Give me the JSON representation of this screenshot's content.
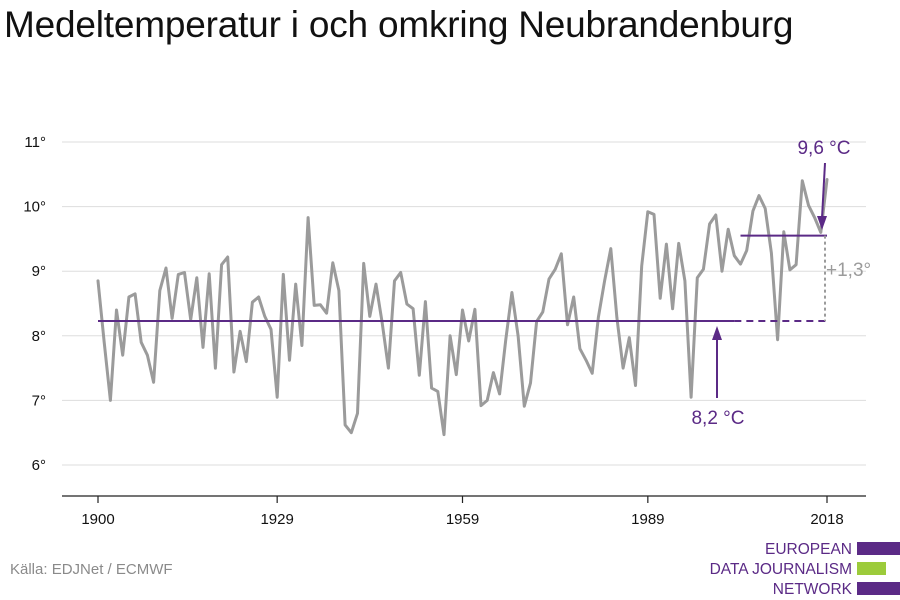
{
  "title": "Medeltemperatur i och omkring Neubrandenburg",
  "source": "Källa: EDJNet / ECMWF",
  "logo": {
    "lines": [
      "EUROPEAN",
      "DATA JOURNALISM",
      "NETWORK"
    ],
    "colors": [
      "#5b2a86",
      "#9ccb3b",
      "#5b2a86"
    ]
  },
  "colors": {
    "series": "#9b9b9b",
    "accent": "#5b2a86",
    "delta": "#9b9b9b",
    "axis": "#222222",
    "grid": "#dddddd",
    "tick_text": "#111111"
  },
  "chart_data": {
    "type": "line",
    "title": "Medeltemperatur i och omkring Neubrandenburg",
    "xlabel": "",
    "ylabel": "",
    "xlim": [
      1900,
      2018
    ],
    "ylim": [
      5.5,
      11.3
    ],
    "x_ticks": [
      1900,
      1929,
      1959,
      1989,
      2018
    ],
    "y_ticks": [
      6,
      7,
      8,
      9,
      10,
      11
    ],
    "y_tick_labels": [
      "6°",
      "7°",
      "8°",
      "9°",
      "10°",
      "11°"
    ],
    "grid": "horizontal",
    "series": [
      {
        "type": "line",
        "x": [
          1900,
          1901,
          1902,
          1903,
          1904,
          1905,
          1906,
          1907,
          1908,
          1909,
          1910,
          1911,
          1912,
          1913,
          1914,
          1915,
          1916,
          1917,
          1918,
          1919,
          1920,
          1921,
          1922,
          1923,
          1924,
          1925,
          1926,
          1927,
          1928,
          1929,
          1930,
          1931,
          1932,
          1933,
          1934,
          1935,
          1936,
          1937,
          1938,
          1939,
          1940,
          1941,
          1942,
          1943,
          1944,
          1945,
          1946,
          1947,
          1948,
          1949,
          1950,
          1951,
          1952,
          1953,
          1954,
          1955,
          1956,
          1957,
          1958,
          1959,
          1960,
          1961,
          1962,
          1963,
          1964,
          1965,
          1966,
          1967,
          1968,
          1969,
          1970,
          1971,
          1972,
          1973,
          1974,
          1975,
          1976,
          1977,
          1978,
          1979,
          1980,
          1981,
          1982,
          1983,
          1984,
          1985,
          1986,
          1987,
          1988,
          1989,
          1990,
          1991,
          1992,
          1993,
          1994,
          1995,
          1996,
          1997,
          1998,
          1999,
          2000,
          2001,
          2002,
          2003,
          2004,
          2005,
          2006,
          2007,
          2008,
          2009,
          2010,
          2011,
          2012,
          2013,
          2014,
          2015,
          2016,
          2017,
          2018
        ],
        "y": [
          8.85,
          7.9,
          7.0,
          8.4,
          7.7,
          8.6,
          8.65,
          7.9,
          7.7,
          7.28,
          8.7,
          9.05,
          8.27,
          8.95,
          8.98,
          8.25,
          8.9,
          7.82,
          8.96,
          7.5,
          9.1,
          9.22,
          7.44,
          8.07,
          7.6,
          8.52,
          8.6,
          8.3,
          8.1,
          7.05,
          8.95,
          7.62,
          8.8,
          7.85,
          9.83,
          8.47,
          8.48,
          8.35,
          9.13,
          8.7,
          6.62,
          6.5,
          6.8,
          9.12,
          8.3,
          8.8,
          8.2,
          7.5,
          8.85,
          8.98,
          8.49,
          8.42,
          7.39,
          8.53,
          7.19,
          7.14,
          6.47,
          8.0,
          7.4,
          8.4,
          7.92,
          8.41,
          6.92,
          7.0,
          7.43,
          7.1,
          7.93,
          8.67,
          8.0,
          6.91,
          7.27,
          8.22,
          8.37,
          8.88,
          9.03,
          9.27,
          8.17,
          8.6,
          7.8,
          7.62,
          7.42,
          8.29,
          8.85,
          9.35,
          8.28,
          7.5,
          7.97,
          7.23,
          9.08,
          9.92,
          9.88,
          8.58,
          9.42,
          8.42,
          9.43,
          8.85,
          7.05,
          8.9,
          9.03,
          9.73,
          9.87,
          9.0,
          9.65,
          9.24,
          9.11,
          9.32,
          9.93,
          10.17,
          9.97,
          9.28,
          7.94,
          9.61,
          9.02,
          9.1,
          10.4,
          10.02,
          9.83,
          9.6,
          10.42
        ]
      }
    ],
    "reference": {
      "baseline_label": "8,2 °C",
      "recent_label": "9,6 °C",
      "difference_label": "+1,3°"
    },
    "reference_lines": [
      {
        "x": [
          1900,
          2003
        ],
        "y": 8.23,
        "style": "solid"
      },
      {
        "x": [
          2003,
          2018
        ],
        "y": 8.23,
        "style": "dashed"
      },
      {
        "x": [
          2004,
          2018
        ],
        "y": 9.55,
        "style": "solid"
      }
    ]
  }
}
